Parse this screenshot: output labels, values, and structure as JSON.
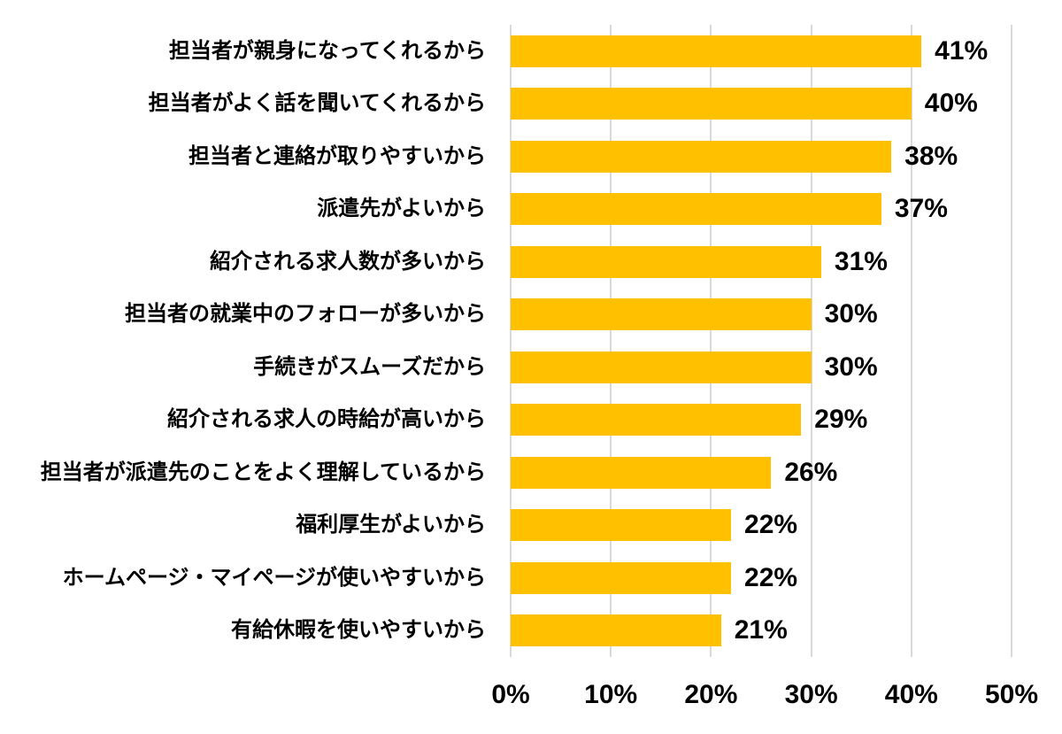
{
  "chart_data": {
    "type": "bar",
    "orientation": "horizontal",
    "title": "",
    "xlabel": "",
    "ylabel": "",
    "categories": [
      "担当者が親身になってくれるから",
      "担当者がよく話を聞いてくれるから",
      "担当者と連絡が取りやすいから",
      "派遣先がよいから",
      "紹介される求人数が多いから",
      "担当者の就業中のフォローが多いから",
      "手続きがスムーズだから",
      "紹介される求人の時給が高いから",
      "担当者が派遣先のことをよく理解しているから",
      "福利厚生がよいから",
      "ホームページ・マイページが使いやすいから",
      "有給休暇を使いやすいから"
    ],
    "values": [
      41,
      40,
      38,
      37,
      31,
      30,
      30,
      29,
      26,
      22,
      22,
      21
    ],
    "value_labels": [
      "41%",
      "40%",
      "38%",
      "37%",
      "31%",
      "30%",
      "30%",
      "29%",
      "26%",
      "22%",
      "22%",
      "21%"
    ],
    "xlim": [
      0,
      50
    ],
    "x_ticks": [
      "0%",
      "10%",
      "20%",
      "30%",
      "40%",
      "50%"
    ],
    "grid": true,
    "legend": "none",
    "bar_color": "#FFC000",
    "gridline_color": "#D9D9D9",
    "text_color": "#000000",
    "background_color": "#FFFFFF"
  }
}
